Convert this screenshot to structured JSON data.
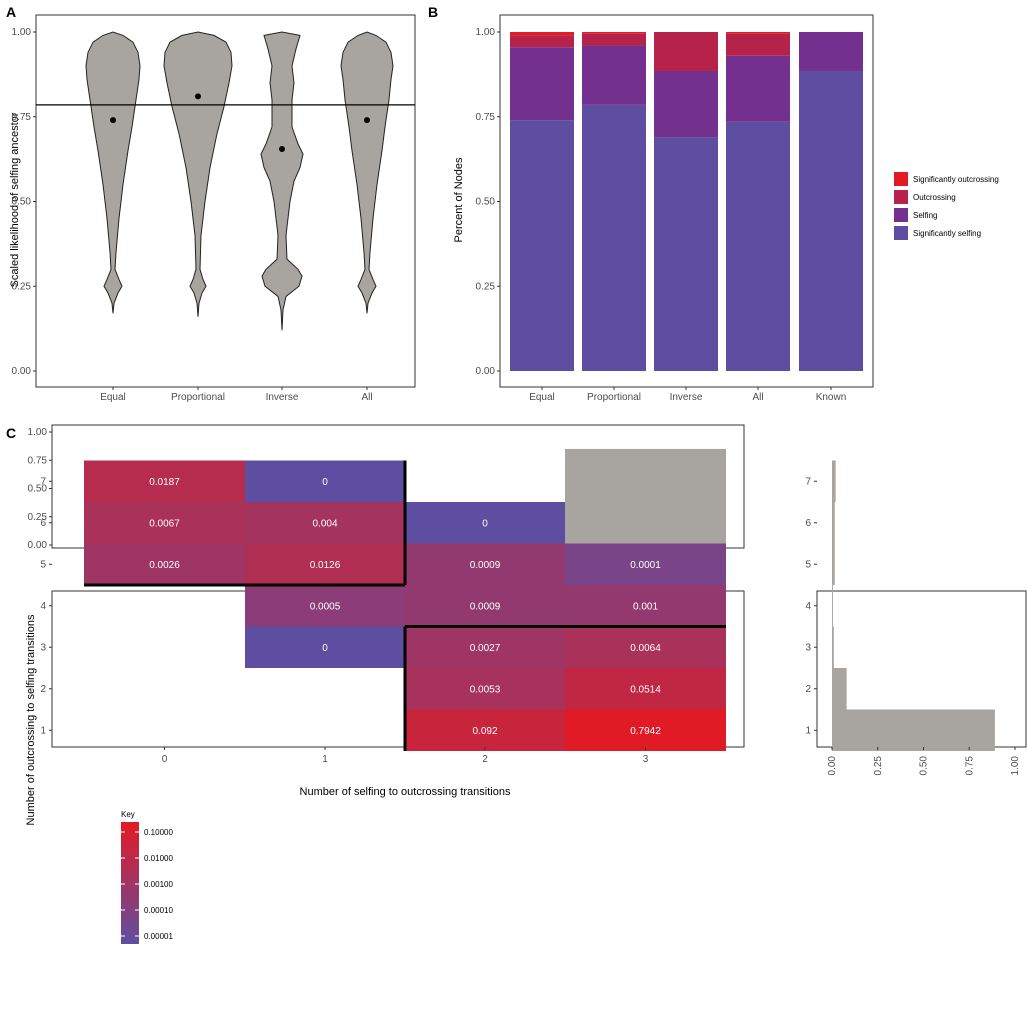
{
  "panel_labels": {
    "a": "A",
    "b": "B",
    "c": "C"
  },
  "colors": {
    "sig_outcrossing": "#e41a23",
    "outcrossing": "#b5224a",
    "selfing": "#74308f",
    "sig_selfing": "#5e4ea1",
    "violin_fill": "#a8a5a0",
    "bar_fill": "#a8a5a0",
    "heat_low": "#5e4ea1",
    "heat_high": "#e41a23"
  },
  "chart_data": [
    {
      "id": "A",
      "type": "violin",
      "ylabel": "Scaled likelihood of selfing ancestor",
      "categories": [
        "Equal",
        "Proportional",
        "Inverse",
        "All"
      ],
      "ylim": [
        0,
        1
      ],
      "yticks": [
        "0.00",
        "0.25",
        "0.50",
        "0.75",
        "1.00"
      ],
      "reference_line": 0.785,
      "means": [
        0.74,
        0.81,
        0.655,
        0.74
      ]
    },
    {
      "id": "B",
      "type": "bar",
      "stacked": true,
      "ylabel": "Percent of Nodes",
      "categories": [
        "Equal",
        "Proportional",
        "Inverse",
        "All",
        "Known"
      ],
      "ylim": [
        0,
        1
      ],
      "yticks": [
        "0.00",
        "0.25",
        "0.50",
        "0.75",
        "1.00"
      ],
      "legend_position": "right",
      "series": [
        {
          "name": "Significantly selfing",
          "values": [
            0.74,
            0.785,
            0.69,
            0.735,
            0.885
          ]
        },
        {
          "name": "Selfing",
          "values": [
            0.215,
            0.175,
            0.195,
            0.195,
            0.115
          ]
        },
        {
          "name": "Outcrossing",
          "values": [
            0.035,
            0.035,
            0.115,
            0.065,
            0.0
          ]
        },
        {
          "name": "Significantly outcrossing",
          "values": [
            0.01,
            0.005,
            0.0,
            0.005,
            0.0
          ]
        }
      ],
      "legend_order": [
        "Significantly outcrossing",
        "Outcrossing",
        "Selfing",
        "Significantly selfing"
      ]
    },
    {
      "id": "C-top",
      "type": "bar",
      "categories": [
        "0",
        "1",
        "2",
        "3"
      ],
      "values": [
        0.03,
        0.02,
        0.1,
        0.85
      ],
      "ylim": [
        0,
        1
      ],
      "yticks": [
        "0.00",
        "0.25",
        "0.50",
        "0.75",
        "1.00"
      ]
    },
    {
      "id": "C-heatmap",
      "type": "heatmap",
      "xlabel": "Number of selfing to outcrossing transitions",
      "ylabel": "Number of outcrossing to selfing transitions",
      "xticks": [
        "0",
        "1",
        "2",
        "3"
      ],
      "yticks": [
        "1",
        "2",
        "3",
        "4",
        "5",
        "6",
        "7"
      ],
      "legend_title": "Key",
      "legend_ticks": [
        "0.10000",
        "0.01000",
        "0.00100",
        "0.00010",
        "0.00001"
      ],
      "cells": [
        {
          "x": 0,
          "y": 7,
          "label": "0.0187",
          "value": 0.0187
        },
        {
          "x": 1,
          "y": 7,
          "label": "0",
          "value": 0
        },
        {
          "x": 0,
          "y": 6,
          "label": "0.0067",
          "value": 0.0067
        },
        {
          "x": 1,
          "y": 6,
          "label": "0.004",
          "value": 0.004
        },
        {
          "x": 2,
          "y": 6,
          "label": "0",
          "value": 0
        },
        {
          "x": 0,
          "y": 5,
          "label": "0.0026",
          "value": 0.0026
        },
        {
          "x": 1,
          "y": 5,
          "label": "0.0126",
          "value": 0.0126
        },
        {
          "x": 2,
          "y": 5,
          "label": "0.0009",
          "value": 0.0009
        },
        {
          "x": 3,
          "y": 5,
          "label": "0.0001",
          "value": 0.0001
        },
        {
          "x": 1,
          "y": 4,
          "label": "0.0005",
          "value": 0.0005
        },
        {
          "x": 2,
          "y": 4,
          "label": "0.0009",
          "value": 0.0009
        },
        {
          "x": 3,
          "y": 4,
          "label": "0.001",
          "value": 0.001
        },
        {
          "x": 1,
          "y": 3,
          "label": "0",
          "value": 0
        },
        {
          "x": 2,
          "y": 3,
          "label": "0.0027",
          "value": 0.0027
        },
        {
          "x": 3,
          "y": 3,
          "label": "0.0064",
          "value": 0.0064
        },
        {
          "x": 2,
          "y": 2,
          "label": "0.0053",
          "value": 0.0053
        },
        {
          "x": 3,
          "y": 2,
          "label": "0.0514",
          "value": 0.0514
        },
        {
          "x": 2,
          "y": 1,
          "label": "0.092",
          "value": 0.092
        },
        {
          "x": 3,
          "y": 1,
          "label": "0.7942",
          "value": 0.7942
        }
      ]
    },
    {
      "id": "C-right",
      "type": "bar",
      "orientation": "horizontal",
      "categories": [
        "1",
        "2",
        "3",
        "4",
        "5",
        "6",
        "7"
      ],
      "values": [
        0.89,
        0.08,
        0.01,
        0.005,
        0.015,
        0.015,
        0.02
      ],
      "xlim": [
        0,
        1
      ],
      "xticks": [
        "0.00",
        "0.25",
        "0.50",
        "0.75",
        "1.00"
      ]
    }
  ]
}
